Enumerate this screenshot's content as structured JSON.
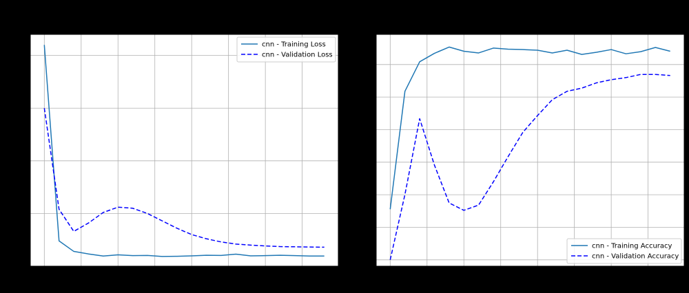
{
  "chart_data": [
    {
      "type": "line",
      "title": "",
      "xlabel": "",
      "ylabel": "",
      "xlim": [
        -0.95,
        19.95
      ],
      "ylim": [
        0.0,
        1.1
      ],
      "grid": true,
      "legend": "top-right",
      "x": [
        0,
        1,
        2,
        3,
        4,
        5,
        6,
        7,
        8,
        9,
        10,
        11,
        12,
        13,
        14,
        15,
        16,
        17,
        18,
        19
      ],
      "series": [
        {
          "name": "cnn - Training Loss",
          "style": "solid",
          "color": "#1f77b4",
          "values": [
            1.05,
            0.12,
            0.07,
            0.058,
            0.048,
            0.054,
            0.05,
            0.051,
            0.046,
            0.047,
            0.049,
            0.052,
            0.051,
            0.057,
            0.049,
            0.05,
            0.052,
            0.05,
            0.048,
            0.048
          ]
        },
        {
          "name": "cnn - Validation Loss",
          "style": "dashed",
          "color": "#0000ff",
          "values": [
            0.75,
            0.27,
            0.165,
            0.205,
            0.255,
            0.28,
            0.275,
            0.25,
            0.215,
            0.18,
            0.15,
            0.13,
            0.115,
            0.105,
            0.1,
            0.096,
            0.093,
            0.092,
            0.091,
            0.09
          ]
        }
      ]
    },
    {
      "type": "line",
      "title": "",
      "xlabel": "",
      "ylabel": "",
      "xlim": [
        -0.95,
        19.95
      ],
      "ylim": [
        0.0,
        1.1
      ],
      "grid": true,
      "legend": "bottom-right",
      "x": [
        0,
        1,
        2,
        3,
        4,
        5,
        6,
        7,
        8,
        9,
        10,
        11,
        12,
        13,
        14,
        15,
        16,
        17,
        18,
        19
      ],
      "series": [
        {
          "name": "cnn - Training Accuracy",
          "style": "solid",
          "color": "#1f77b4",
          "values": [
            0.27,
            0.83,
            0.97,
            1.01,
            1.04,
            1.02,
            1.012,
            1.035,
            1.03,
            1.028,
            1.025,
            1.012,
            1.025,
            1.005,
            1.015,
            1.028,
            1.008,
            1.018,
            1.038,
            1.02
          ]
        },
        {
          "name": "cnn - Validation Accuracy",
          "style": "dashed",
          "color": "#0000ff",
          "values": [
            0.03,
            0.34,
            0.7,
            0.48,
            0.3,
            0.265,
            0.29,
            0.4,
            0.52,
            0.635,
            0.715,
            0.79,
            0.83,
            0.845,
            0.87,
            0.885,
            0.895,
            0.91,
            0.91,
            0.905
          ]
        }
      ]
    }
  ]
}
